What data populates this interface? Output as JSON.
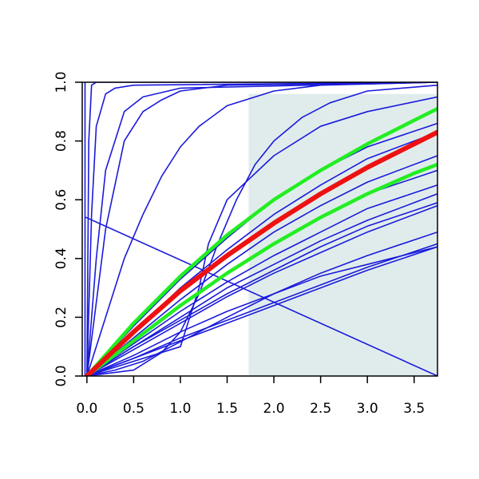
{
  "chart_data": {
    "type": "line",
    "title": "",
    "xlabel": "",
    "ylabel": "",
    "xlim": [
      -0.05,
      3.75
    ],
    "ylim": [
      0,
      1
    ],
    "x_ticks": [
      {
        "value": 0,
        "label": "0.0"
      },
      {
        "value": 0.5,
        "label": "0.5"
      },
      {
        "value": 1,
        "label": "1.0"
      },
      {
        "value": 1.5,
        "label": "1.5"
      },
      {
        "value": 2,
        "label": "2.0"
      },
      {
        "value": 2.5,
        "label": "2.5"
      },
      {
        "value": 3,
        "label": "3.0"
      },
      {
        "value": 3.5,
        "label": "3.5"
      }
    ],
    "y_ticks": [
      {
        "value": 0,
        "label": "0.0"
      },
      {
        "value": 0.2,
        "label": "0.2"
      },
      {
        "value": 0.4,
        "label": "0.4"
      },
      {
        "value": 0.6,
        "label": "0.6"
      },
      {
        "value": 0.8,
        "label": "0.8"
      },
      {
        "value": 1,
        "label": "1.0"
      }
    ],
    "shaded_region": {
      "x_from": 1.73,
      "x_to": 3.75,
      "y_from": 0,
      "y_to": 0.96,
      "color": "#e0ecec"
    },
    "colors": {
      "blue": "#1a1adb",
      "red": "#ee1111",
      "green": "#22ee22"
    },
    "series": [
      {
        "color": "blue",
        "width": 1.6,
        "x": [
          0,
          0.02,
          0.05,
          0.1,
          3.75
        ],
        "y": [
          0,
          0.8,
          0.99,
          1,
          1
        ]
      },
      {
        "color": "blue",
        "width": 1.6,
        "x": [
          0,
          0.05,
          0.1,
          0.2,
          0.3,
          0.5,
          3.75
        ],
        "y": [
          0,
          0.55,
          0.85,
          0.96,
          0.98,
          0.99,
          1
        ]
      },
      {
        "color": "blue",
        "width": 1.6,
        "x": [
          0,
          0.1,
          0.2,
          0.4,
          0.6,
          1.0,
          3.75
        ],
        "y": [
          0,
          0.4,
          0.7,
          0.9,
          0.95,
          0.98,
          1
        ]
      },
      {
        "color": "blue",
        "width": 1.6,
        "x": [
          0,
          0.1,
          0.2,
          0.4,
          0.6,
          0.8,
          1.0,
          1.5,
          3.75
        ],
        "y": [
          0,
          0.25,
          0.5,
          0.8,
          0.9,
          0.94,
          0.97,
          0.99,
          1
        ]
      },
      {
        "color": "blue",
        "width": 1.6,
        "x": [
          0,
          0.2,
          0.4,
          0.6,
          0.8,
          1.0,
          1.2,
          1.5,
          2.0,
          2.5,
          3.75
        ],
        "y": [
          0,
          0.2,
          0.4,
          0.55,
          0.68,
          0.78,
          0.85,
          0.92,
          0.97,
          0.99,
          1
        ]
      },
      {
        "color": "blue",
        "width": 1.6,
        "x": [
          0,
          0.5,
          0.8,
          1.0,
          1.2,
          1.4,
          1.6,
          1.8,
          2.0,
          2.3,
          2.6,
          3.0,
          3.75
        ],
        "y": [
          0,
          0.02,
          0.08,
          0.15,
          0.28,
          0.45,
          0.6,
          0.72,
          0.8,
          0.88,
          0.93,
          0.97,
          0.99
        ]
      },
      {
        "color": "blue",
        "width": 1.6,
        "x": [
          0,
          1.0,
          1.2,
          1.3,
          1.5,
          2.0,
          2.5,
          3.0,
          3.75
        ],
        "y": [
          0,
          0.1,
          0.3,
          0.45,
          0.6,
          0.75,
          0.85,
          0.9,
          0.95
        ]
      },
      {
        "color": "blue",
        "width": 1.6,
        "x": [
          0,
          0.5,
          1.0,
          1.5,
          2.0,
          2.5,
          3.0,
          3.75
        ],
        "y": [
          0,
          0.17,
          0.33,
          0.47,
          0.6,
          0.7,
          0.78,
          0.86
        ]
      },
      {
        "color": "blue",
        "width": 1.6,
        "x": [
          0,
          0.5,
          1.0,
          1.5,
          2.0,
          2.5,
          3.0,
          3.75
        ],
        "y": [
          0,
          0.15,
          0.3,
          0.43,
          0.55,
          0.65,
          0.74,
          0.83
        ]
      },
      {
        "color": "blue",
        "width": 1.6,
        "x": [
          0,
          0.5,
          1.0,
          1.5,
          2.0,
          2.5,
          3.0,
          3.75
        ],
        "y": [
          0,
          0.13,
          0.26,
          0.38,
          0.49,
          0.58,
          0.66,
          0.75
        ]
      },
      {
        "color": "blue",
        "width": 1.6,
        "x": [
          0,
          0.5,
          1.0,
          1.5,
          2.0,
          2.5,
          3.0,
          3.75
        ],
        "y": [
          0,
          0.12,
          0.24,
          0.35,
          0.45,
          0.54,
          0.62,
          0.7
        ]
      },
      {
        "color": "blue",
        "width": 1.6,
        "x": [
          0,
          0.5,
          1.0,
          1.5,
          2.0,
          2.5,
          3.0,
          3.75
        ],
        "y": [
          0,
          0.11,
          0.22,
          0.32,
          0.41,
          0.49,
          0.57,
          0.65
        ]
      },
      {
        "color": "blue",
        "width": 1.6,
        "x": [
          0,
          0.5,
          1.0,
          1.5,
          2.0,
          2.5,
          3.0,
          3.75
        ],
        "y": [
          0,
          0.1,
          0.2,
          0.3,
          0.38,
          0.46,
          0.53,
          0.62
        ]
      },
      {
        "color": "blue",
        "width": 1.6,
        "x": [
          0,
          0.5,
          1.0,
          1.5,
          2.0,
          2.5,
          3.0,
          3.75
        ],
        "y": [
          0,
          0.1,
          0.19,
          0.28,
          0.36,
          0.44,
          0.51,
          0.59
        ]
      },
      {
        "color": "blue",
        "width": 1.6,
        "x": [
          0,
          0.5,
          1.0,
          1.5,
          2.0,
          2.5,
          3.0,
          3.75
        ],
        "y": [
          0,
          0.09,
          0.18,
          0.27,
          0.35,
          0.42,
          0.49,
          0.58
        ]
      },
      {
        "color": "blue",
        "width": 1.6,
        "x": [
          0,
          0.5,
          1.0,
          1.5,
          2.0,
          2.5,
          3.0,
          3.75
        ],
        "y": [
          0,
          0.07,
          0.15,
          0.22,
          0.28,
          0.35,
          0.41,
          0.49
        ]
      },
      {
        "color": "blue",
        "width": 1.6,
        "x": [
          0,
          0.5,
          1.0,
          1.5,
          2.0,
          2.5,
          3.0,
          3.75
        ],
        "y": [
          0,
          0.06,
          0.13,
          0.19,
          0.25,
          0.31,
          0.37,
          0.45
        ]
      },
      {
        "color": "blue",
        "width": 1.6,
        "x": [
          0,
          0.5,
          1.0,
          1.5,
          2.0,
          2.5,
          3.0,
          3.75
        ],
        "y": [
          0,
          0.06,
          0.12,
          0.18,
          0.24,
          0.3,
          0.36,
          0.44
        ]
      },
      {
        "color": "blue",
        "width": 1.6,
        "x": [
          0,
          0.3,
          0.6,
          0.9,
          1.2,
          1.5,
          2.0,
          2.5,
          3.0,
          3.75
        ],
        "y": [
          0,
          0.02,
          0.05,
          0.1,
          0.15,
          0.2,
          0.28,
          0.34,
          0.38,
          0.44
        ]
      },
      {
        "color": "blue",
        "width": 1.6,
        "x": [
          -0.01,
          3.75
        ],
        "y": [
          0.54,
          0.0
        ]
      },
      {
        "color": "blue",
        "width": 1.6,
        "x": [
          -0.02,
          -0.02
        ],
        "y": [
          0,
          1
        ]
      },
      {
        "color": "green",
        "width": 4.5,
        "x": [
          0,
          0.5,
          1.0,
          1.5,
          2.0,
          2.5,
          3.0,
          3.5,
          3.75
        ],
        "y": [
          0,
          0.18,
          0.34,
          0.48,
          0.6,
          0.7,
          0.79,
          0.87,
          0.91
        ]
      },
      {
        "color": "green",
        "width": 4.5,
        "x": [
          0,
          0.5,
          1.0,
          1.5,
          2.0,
          2.5,
          3.0,
          3.5,
          3.75
        ],
        "y": [
          0,
          0.12,
          0.24,
          0.35,
          0.45,
          0.54,
          0.62,
          0.69,
          0.72
        ]
      },
      {
        "color": "red",
        "width": 6,
        "x": [
          0,
          0.5,
          1.0,
          1.5,
          2.0,
          2.5,
          3.0,
          3.5,
          3.75
        ],
        "y": [
          0,
          0.15,
          0.29,
          0.41,
          0.52,
          0.62,
          0.71,
          0.79,
          0.83
        ]
      }
    ]
  }
}
